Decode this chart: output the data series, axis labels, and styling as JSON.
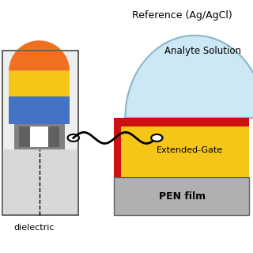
{
  "bg_color": "#ffffff",
  "title_text": "Reference (Ag/AgCl)",
  "analyte_text": "Analyte Solution",
  "extended_gate_text": "Extended-Gate",
  "pen_film_text": "PEN film",
  "dielectric_text": "dielectric",
  "colors": {
    "light_blue_dome": "#cce8f4",
    "dome_border": "#8ab8cc",
    "orange_top": "#f07020",
    "yellow": "#f5c518",
    "blue": "#4472c4",
    "gray_box": "#808080",
    "light_gray_bg": "#d8d8d8",
    "red": "#cc1111",
    "dark_gray_pen": "#b0b0b0",
    "white": "#ffffff",
    "black": "#000000",
    "dark_gray": "#606060",
    "outer_bg": "#eeeeee"
  }
}
